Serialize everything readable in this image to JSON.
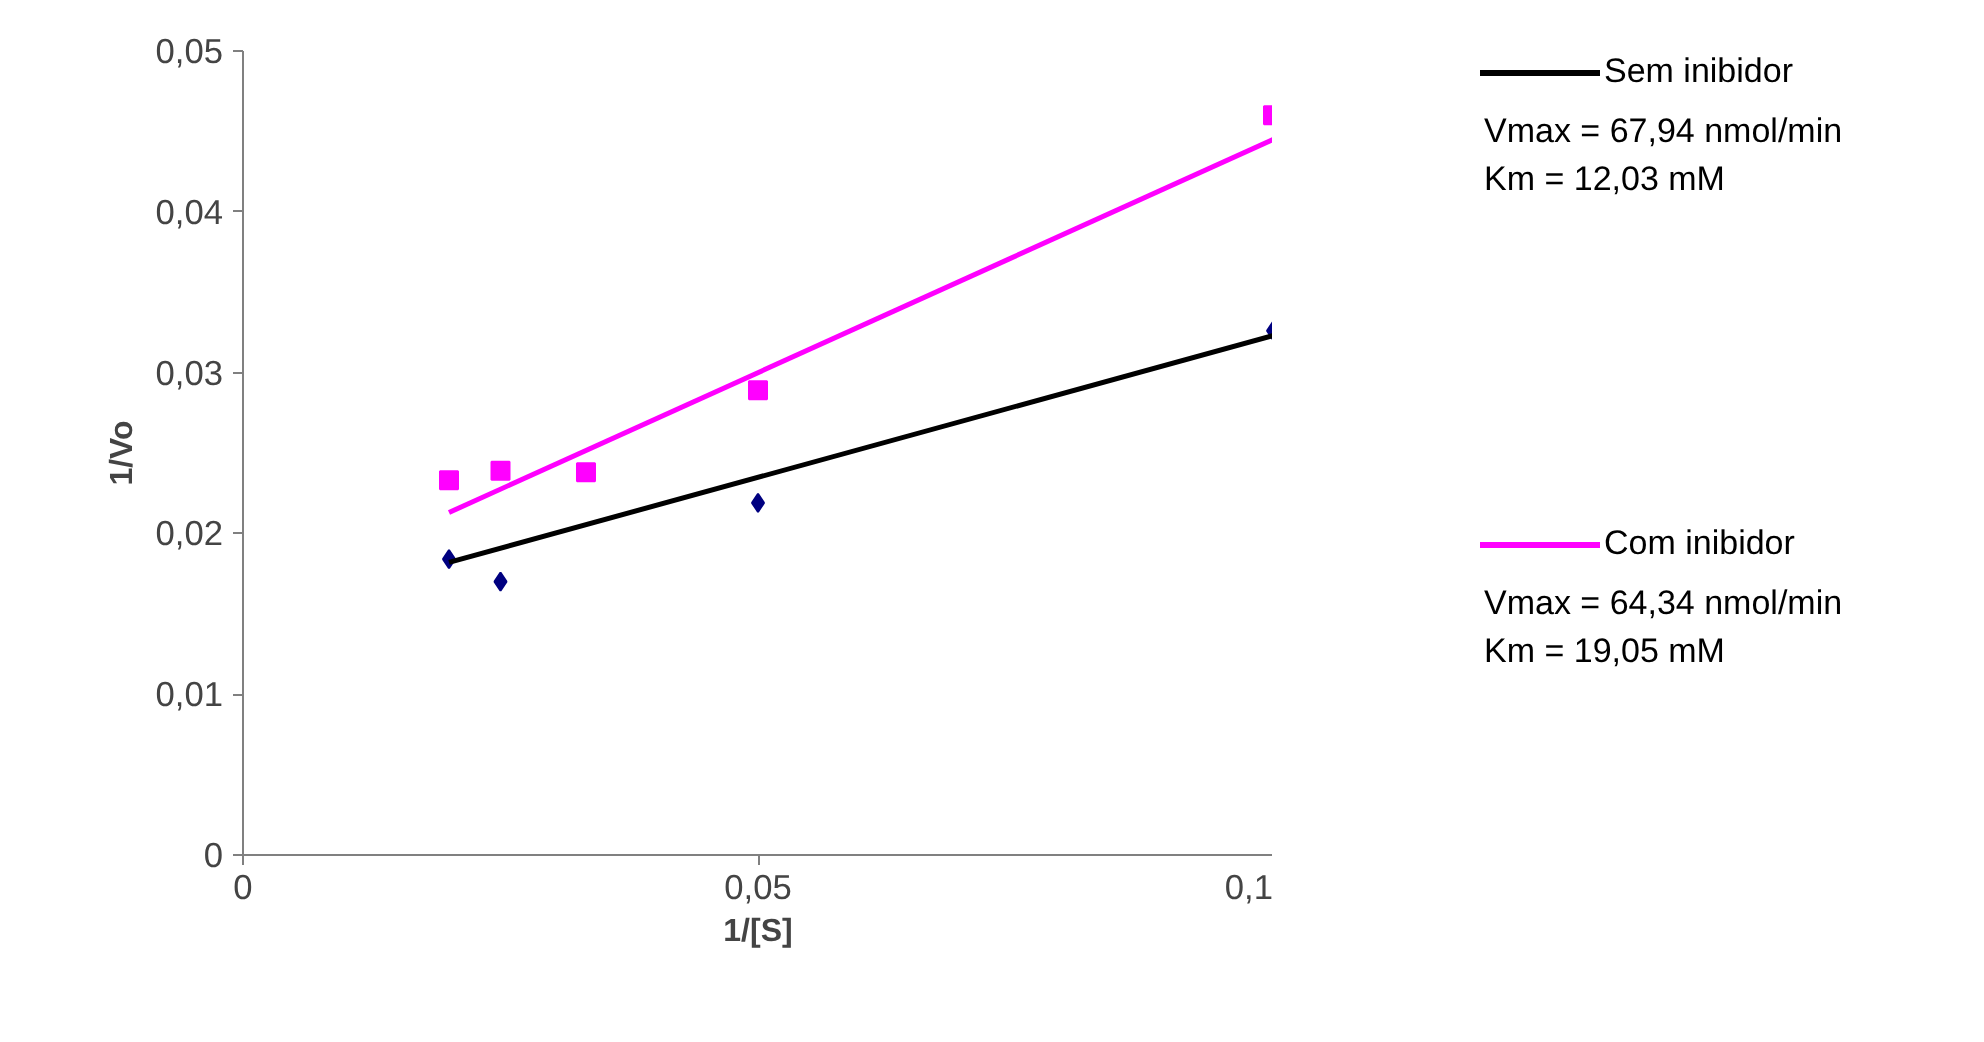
{
  "chart_data": {
    "type": "scatter",
    "xlabel": "1/[S]",
    "ylabel": "1/Vo",
    "xlim": [
      0,
      0.1
    ],
    "ylim": [
      0,
      0.05
    ],
    "xticks": [
      0,
      {
        "value": 0.05,
        "label": "0,05"
      },
      {
        "value": 0.1,
        "label": "0,1"
      }
    ],
    "yticks": [
      0,
      {
        "value": 0.01,
        "label": "0,01"
      },
      {
        "value": 0.02,
        "label": "0,02"
      },
      {
        "value": 0.03,
        "label": "0,03"
      },
      {
        "value": 0.04,
        "label": "0,04"
      },
      {
        "value": 0.05,
        "label": "0,05"
      }
    ],
    "grid": false,
    "legend": "right",
    "series": [
      {
        "type": "scatter",
        "marker": "diamond",
        "color": "#000080",
        "x": [
          0.02,
          0.025,
          0.05,
          0.1
        ],
        "values": [
          0.0184,
          0.017,
          0.0219,
          0.0326
        ]
      },
      {
        "type": "scatter",
        "marker": "square",
        "color": "#ff00ff",
        "x": [
          0.02,
          0.025,
          0.0333,
          0.05,
          0.1
        ],
        "values": [
          0.0233,
          0.0239,
          0.0238,
          0.0289,
          0.046
        ]
      },
      {
        "type": "line",
        "name": "Sem inibidor",
        "color": "#000000",
        "x": [
          0.02,
          0.1
        ],
        "values": [
          0.0182,
          0.0323
        ]
      },
      {
        "type": "line",
        "name": "Com inibidor",
        "color": "#ff00ff",
        "x": [
          0.02,
          0.1
        ],
        "values": [
          0.0213,
          0.0445
        ]
      }
    ],
    "annotations": [
      "Vmax = 67,94 nmol/min",
      "Km = 12,03 mM",
      "Vmax = 64,34 nmol/min",
      "Km = 19,05 mM"
    ]
  }
}
